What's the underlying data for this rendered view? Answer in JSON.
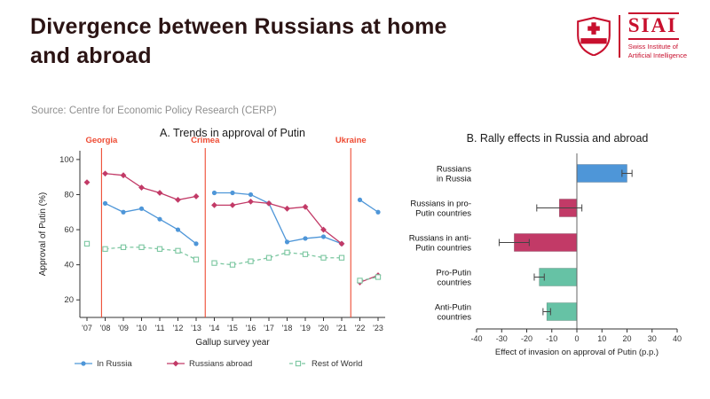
{
  "header": {
    "title_lines": [
      "Divergence between Russians at home",
      "and abroad"
    ],
    "source": "Source: Centre for Economic Policy Research (CERP)"
  },
  "logo": {
    "acronym": "SIAI",
    "org_lines": [
      "Swiss Institute of",
      "Artificial Intelligence"
    ],
    "color": "#c8102e"
  },
  "chart_data": [
    {
      "id": "approval-trends",
      "type": "line",
      "title": "A. Trends in approval of Putin",
      "xlabel": "Gallup survey year",
      "ylabel": "Approval of Putin (%)",
      "x_ticklabels": [
        "'07",
        "'08",
        "'09",
        "'10",
        "'11",
        "'12",
        "'13",
        "'14",
        "'15",
        "'16",
        "'17",
        "'18",
        "'19",
        "'20",
        "'21",
        "'22",
        "'23"
      ],
      "ylim": [
        10,
        105
      ],
      "yticks": [
        20,
        40,
        60,
        80,
        100
      ],
      "break_after": [
        0,
        6,
        14
      ],
      "event_color": "#ee4b33",
      "events": [
        {
          "label": "Georgia",
          "x": 0.8
        },
        {
          "label": "Crimea",
          "x": 6.5
        },
        {
          "label": "Ukraine",
          "x": 14.5
        }
      ],
      "legend_position": "bottom",
      "grid": false,
      "series": [
        {
          "name": "In Russia",
          "color": "#4e96d8",
          "marker": "circle",
          "dashed": false,
          "values": [
            52,
            75,
            70,
            72,
            66,
            60,
            52,
            81,
            81,
            80,
            75,
            53,
            55,
            56,
            52,
            77,
            70
          ]
        },
        {
          "name": "Russians abroad",
          "color": "#c23a67",
          "marker": "diamond",
          "dashed": false,
          "values": [
            87,
            92,
            91,
            84,
            81,
            77,
            79,
            74,
            74,
            76,
            75,
            72,
            73,
            60,
            52,
            30,
            34
          ]
        },
        {
          "name": "Rest of World",
          "color": "#7cc7a1",
          "marker": "square-open",
          "dashed": true,
          "values": [
            52,
            49,
            50,
            50,
            49,
            48,
            43,
            41,
            40,
            42,
            44,
            47,
            46,
            44,
            44,
            31,
            33
          ]
        }
      ]
    },
    {
      "id": "rally-effects",
      "type": "bar",
      "orientation": "horizontal",
      "title": "B. Rally effects in Russia and abroad",
      "xlabel": "Effect of invasion on approval of Putin (p.p.)",
      "xlim": [
        -40,
        40
      ],
      "xticks": [
        -40,
        -30,
        -20,
        -10,
        0,
        10,
        20,
        30,
        40
      ],
      "grid": false,
      "categories": [
        "Russians in Russia",
        "Russians in pro-Putin countries",
        "Russians in anti-Putin countries",
        "Pro-Putin countries",
        "Anti-Putin countries"
      ],
      "category_label_lines": [
        [
          "Russians",
          "in Russia"
        ],
        [
          "Russians in pro-",
          "Putin countries"
        ],
        [
          "Russians in anti-",
          "Putin countries"
        ],
        [
          "Pro-Putin",
          "countries"
        ],
        [
          "Anti-Putin",
          "countries"
        ]
      ],
      "values": [
        20,
        -7,
        -25,
        -15,
        -12
      ],
      "ci": [
        [
          18,
          22
        ],
        [
          -16,
          2
        ],
        [
          -31,
          -19
        ],
        [
          -17,
          -13
        ],
        [
          -13.5,
          -10.5
        ]
      ],
      "bar_colors": [
        "#4e96d8",
        "#c23a67",
        "#c23a67",
        "#66c2a5",
        "#66c2a5"
      ]
    }
  ]
}
